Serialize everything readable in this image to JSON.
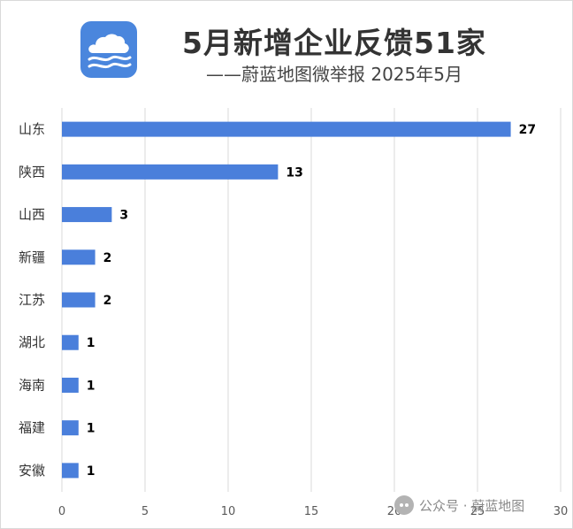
{
  "header": {
    "title": "5月新增企业反馈51家",
    "subtitle": "——蔚蓝地图微举报 2025年5月"
  },
  "logo": {
    "icon": "cloud-wave-icon",
    "color": "#4a86dd"
  },
  "watermark": {
    "icon": "wechat-icon",
    "text": "公众号 · 蔚蓝地图"
  },
  "chart_data": {
    "type": "bar",
    "orientation": "horizontal",
    "categories": [
      "山东",
      "陕西",
      "山西",
      "新疆",
      "江苏",
      "湖北",
      "海南",
      "福建",
      "安徽"
    ],
    "values": [
      27,
      13,
      3,
      2,
      2,
      1,
      1,
      1,
      1
    ],
    "xlim": [
      0,
      30
    ],
    "xticks": [
      0,
      5,
      10,
      15,
      20,
      25,
      30
    ],
    "grid": "vertical",
    "bar_color": "#4a7fdb",
    "gridline_color": "#d9d9d9",
    "data_labels": true
  }
}
